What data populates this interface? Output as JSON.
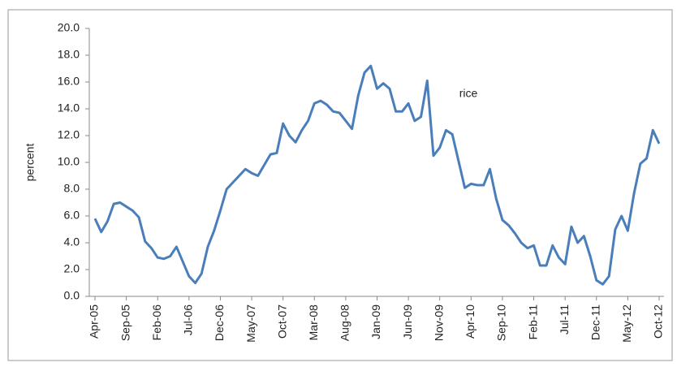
{
  "chart_data": {
    "type": "line",
    "y_label": "percent",
    "annotation": "rice",
    "categories": [
      "Apr-05",
      null,
      null,
      null,
      null,
      "Sep-05",
      null,
      null,
      null,
      null,
      "Feb-06",
      null,
      null,
      null,
      null,
      "Jul-06",
      null,
      null,
      null,
      null,
      "Dec-06",
      null,
      null,
      null,
      null,
      "May-07",
      null,
      null,
      null,
      null,
      "Oct-07",
      null,
      null,
      null,
      null,
      "Mar-08",
      null,
      null,
      null,
      null,
      "Aug-08",
      null,
      null,
      null,
      null,
      "Jan-09",
      null,
      null,
      null,
      null,
      "Jun-09",
      null,
      null,
      null,
      null,
      "Nov-09",
      null,
      null,
      null,
      null,
      "Apr-10",
      null,
      null,
      null,
      null,
      "Sep-10",
      null,
      null,
      null,
      null,
      "Feb-11",
      null,
      null,
      null,
      null,
      "Jul-11",
      null,
      null,
      null,
      null,
      "Dec-11",
      null,
      null,
      null,
      null,
      "May-12",
      null,
      null,
      null,
      null,
      "Oct-12"
    ],
    "series": [
      {
        "name": "rice",
        "color": "#4a7ebb",
        "values": [
          5.8,
          4.8,
          5.6,
          6.9,
          7.0,
          6.7,
          6.4,
          5.9,
          4.1,
          3.6,
          2.9,
          2.8,
          3.0,
          3.7,
          2.6,
          1.5,
          1.0,
          1.7,
          3.7,
          4.9,
          6.4,
          8.0,
          8.5,
          9.0,
          9.5,
          9.2,
          9.0,
          9.8,
          10.6,
          10.7,
          12.9,
          12.0,
          11.5,
          12.4,
          13.1,
          14.4,
          14.6,
          14.3,
          13.8,
          13.7,
          13.1,
          12.5,
          15.0,
          16.7,
          17.2,
          15.5,
          15.9,
          15.5,
          13.8,
          13.8,
          14.4,
          13.1,
          13.4,
          16.1,
          10.5,
          11.1,
          12.4,
          12.1,
          10.1,
          8.1,
          8.4,
          8.3,
          8.3,
          9.5,
          7.3,
          5.7,
          5.3,
          4.7,
          4.0,
          3.6,
          3.8,
          2.3,
          2.3,
          3.8,
          2.9,
          2.4,
          5.2,
          4.0,
          4.5,
          3.0,
          1.2,
          0.9,
          1.5,
          5.0,
          6.0,
          4.9,
          7.7,
          9.9,
          10.3,
          12.4,
          11.4
        ]
      }
    ],
    "ylim": [
      0,
      20
    ],
    "yticks": [
      {
        "value": 0,
        "label": "0.0"
      },
      {
        "value": 2,
        "label": "2.0"
      },
      {
        "value": 4,
        "label": "4.0"
      },
      {
        "value": 6,
        "label": "6.0"
      },
      {
        "value": 8,
        "label": "8.0"
      },
      {
        "value": 10,
        "label": "10.0"
      },
      {
        "value": 12,
        "label": "12.0"
      },
      {
        "value": 14,
        "label": "14.0"
      },
      {
        "value": 16,
        "label": "16.0"
      },
      {
        "value": 18,
        "label": "18.0"
      },
      {
        "value": 20,
        "label": "20.0"
      }
    ],
    "grid": false
  }
}
